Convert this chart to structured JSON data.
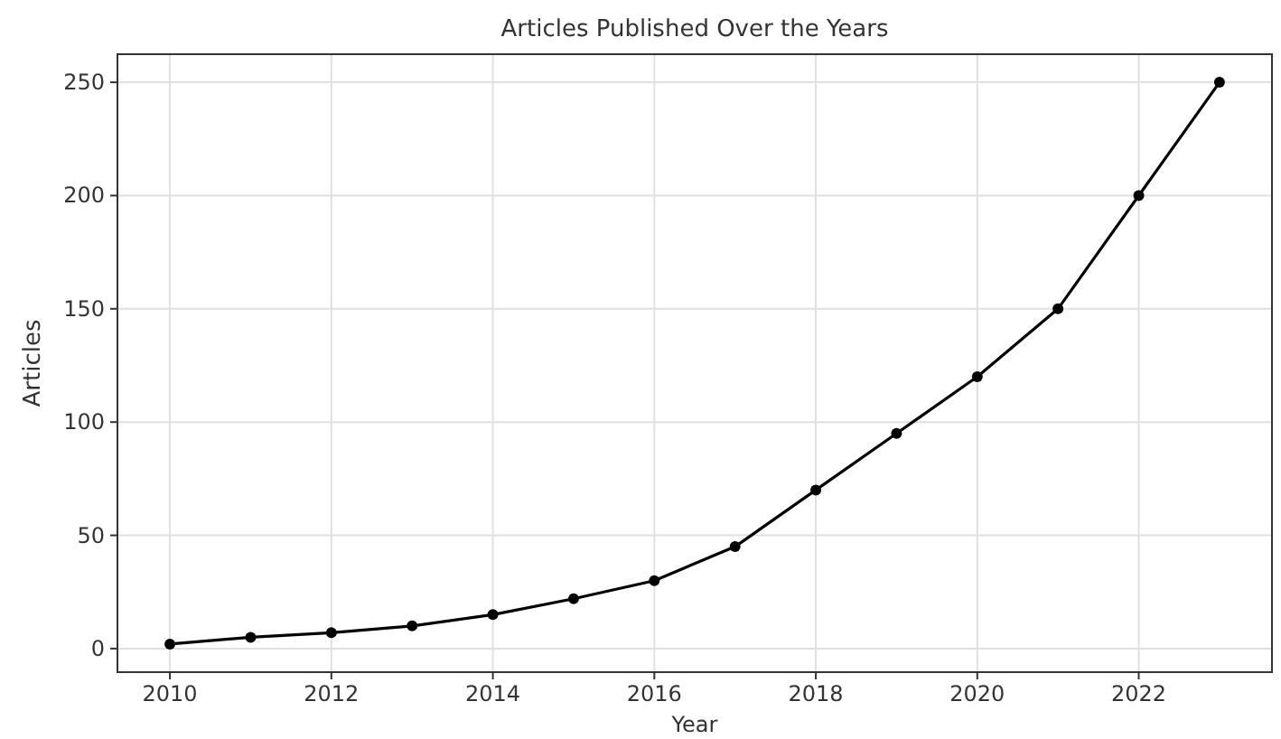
{
  "chart_data": {
    "type": "line",
    "title": "Articles Published Over the Years",
    "xlabel": "Year",
    "ylabel": "Articles",
    "x": [
      2010,
      2011,
      2012,
      2013,
      2014,
      2015,
      2016,
      2017,
      2018,
      2019,
      2020,
      2021,
      2022,
      2023
    ],
    "series": [
      {
        "color": "#000000",
        "values": [
          2,
          5,
          7,
          10,
          15,
          22,
          30,
          45,
          70,
          95,
          120,
          150,
          200,
          250
        ]
      }
    ],
    "xlim": [
      2009.35,
      2023.65
    ],
    "xticks": [
      2010,
      2012,
      2014,
      2016,
      2018,
      2020,
      2022
    ],
    "ylim": [
      -10.4,
      262.4
    ],
    "yticks": [
      0,
      50,
      100,
      150,
      200,
      250
    ],
    "grid": true,
    "marker": "circle",
    "line_style": "solid"
  }
}
